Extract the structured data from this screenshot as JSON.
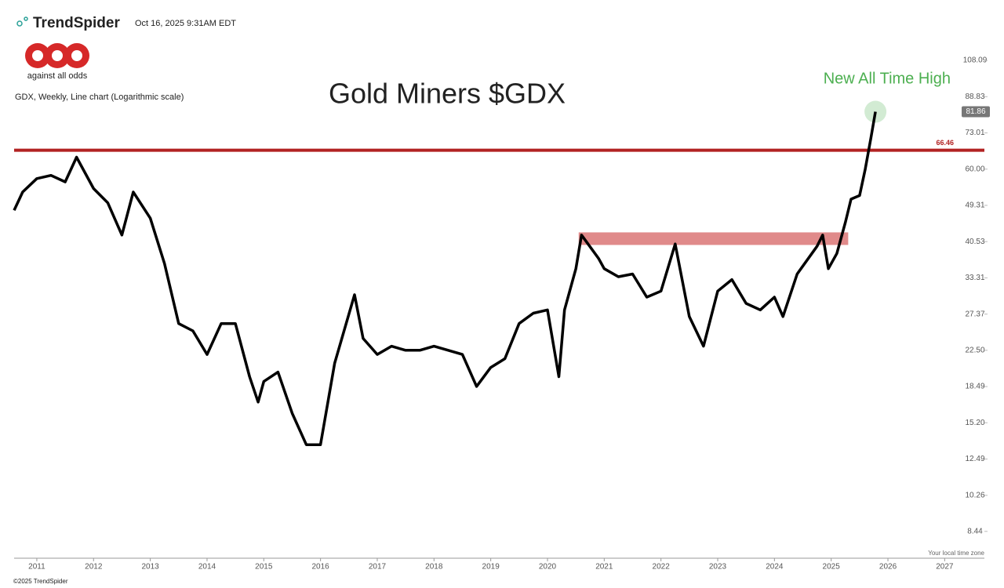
{
  "header": {
    "brand": "TrendSpider",
    "timestamp": "Oct 16, 2025 9:31AM EDT",
    "logo_text": "against all odds",
    "time_zone_note": "Your local time zone",
    "copyright": "©2025 TrendSpider"
  },
  "chart_data": {
    "type": "line",
    "title": "Gold Miners $GDX",
    "subtitle": "GDX, Weekly, Line chart (Logarithmic scale)",
    "annotation": "New All Time High",
    "log_scale": true,
    "color": "#000000",
    "x": [
      2010.6,
      2010.75,
      2011.0,
      2011.25,
      2011.5,
      2011.7,
      2012.0,
      2012.25,
      2012.5,
      2012.7,
      2013.0,
      2013.25,
      2013.5,
      2013.75,
      2014.0,
      2014.25,
      2014.5,
      2014.75,
      2014.9,
      2015.0,
      2015.25,
      2015.5,
      2015.75,
      2016.0,
      2016.25,
      2016.6,
      2016.75,
      2017.0,
      2017.25,
      2017.5,
      2017.75,
      2018.0,
      2018.25,
      2018.5,
      2018.75,
      2019.0,
      2019.25,
      2019.5,
      2019.75,
      2020.0,
      2020.2,
      2020.3,
      2020.5,
      2020.6,
      2020.9,
      2021.0,
      2021.25,
      2021.5,
      2021.75,
      2022.0,
      2022.25,
      2022.5,
      2022.75,
      2023.0,
      2023.25,
      2023.5,
      2023.75,
      2024.0,
      2024.15,
      2024.4,
      2024.75,
      2024.85,
      2024.95,
      2025.1,
      2025.25,
      2025.35,
      2025.5,
      2025.6,
      2025.7,
      2025.78
    ],
    "values": [
      48,
      53,
      57,
      58,
      56,
      64,
      54,
      50,
      42,
      53,
      46,
      36,
      26,
      25,
      22,
      26,
      26,
      19.5,
      17,
      19,
      20,
      16,
      13.5,
      13.5,
      21,
      30.4,
      24,
      22,
      23,
      22.5,
      22.5,
      23,
      22.5,
      22,
      18.5,
      20.5,
      21.5,
      26,
      27.5,
      28,
      19.5,
      28,
      35,
      42,
      37,
      35,
      33.5,
      34,
      30,
      31,
      40,
      27,
      23,
      31,
      33,
      29,
      28,
      30,
      27,
      34,
      39.5,
      42,
      35,
      38,
      45,
      51,
      52,
      60,
      71,
      81.86
    ],
    "hline": {
      "value": 66.46,
      "color": "#b22222"
    },
    "zone": {
      "x": [
        2020.55,
        2025.3
      ],
      "y": [
        39.8,
        42.6
      ],
      "color": "#e08a8a"
    },
    "xlim": [
      2010.6,
      2027.7
    ],
    "xticks": [
      2011,
      2012,
      2013,
      2014,
      2015,
      2016,
      2017,
      2018,
      2019,
      2020,
      2021,
      2022,
      2023,
      2024,
      2025,
      2026,
      2027
    ],
    "ylim": [
      7.3,
      116.2
    ],
    "yticks": [
      {
        "value": 8.44,
        "label": "8.44"
      },
      10.26,
      12.49,
      {
        "value": 15.2,
        "label": "15.20"
      },
      18.49,
      {
        "value": 22.5,
        "label": "22.50"
      },
      27.37,
      33.31,
      40.53,
      49.31,
      {
        "value": 60,
        "label": "60.00"
      },
      73.01,
      88.83,
      108.09
    ]
  }
}
